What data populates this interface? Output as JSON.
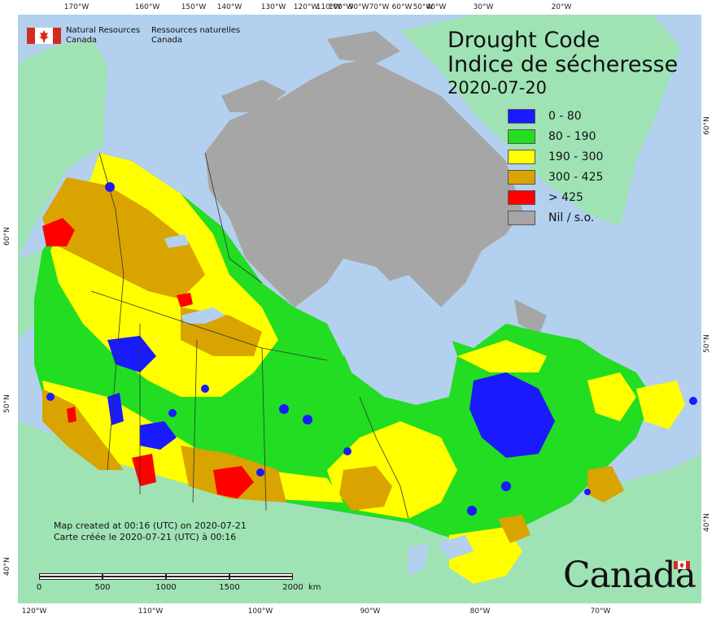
{
  "map": {
    "title_en": "Drought Code",
    "title_fr": "Indice de sécheresse",
    "date": "2020-07-20"
  },
  "legend": [
    {
      "label": "0 - 80",
      "color": "#1a1aff"
    },
    {
      "label": "80 - 190",
      "color": "#22dd22"
    },
    {
      "label": "190 - 300",
      "color": "#ffff00"
    },
    {
      "label": "300 - 425",
      "color": "#d9a300"
    },
    {
      "label": "> 425",
      "color": "#ff0000"
    },
    {
      "label": "Nil / s.o.",
      "color": "#a6a6a6"
    }
  ],
  "agency": {
    "en_line1": "Natural Resources",
    "en_line2": "Canada",
    "fr_line1": "Ressources naturelles",
    "fr_line2": "Canada"
  },
  "credits": {
    "en": "Map created at 00:16 (UTC) on 2020-07-21",
    "fr": "Carte créée le 2020-07-21 (UTC) à 00:16"
  },
  "scale": {
    "labels": [
      "0",
      "500",
      "1000",
      "1500",
      "2000"
    ],
    "unit": "km"
  },
  "wordmark": "Canada",
  "axes": {
    "top": [
      "170°W",
      "160°W",
      "150°W",
      "140°W",
      "130°W",
      "120°W",
      "110°W",
      "100°W",
      "90°W",
      "80°W",
      "70°W",
      "60°W",
      "50°W",
      "40°W",
      "30°W",
      "20°W"
    ],
    "bottom": [
      "120°W",
      "110°W",
      "100°W",
      "90°W",
      "80°W",
      "70°W"
    ],
    "left": [
      "60°N",
      "50°N",
      "40°N"
    ],
    "right": [
      "60°N",
      "50°N",
      "40°N"
    ]
  },
  "colors": {
    "water": "#b3d0ee",
    "land_outside": "#9fe3b5",
    "nil": "#a6a6a6"
  }
}
